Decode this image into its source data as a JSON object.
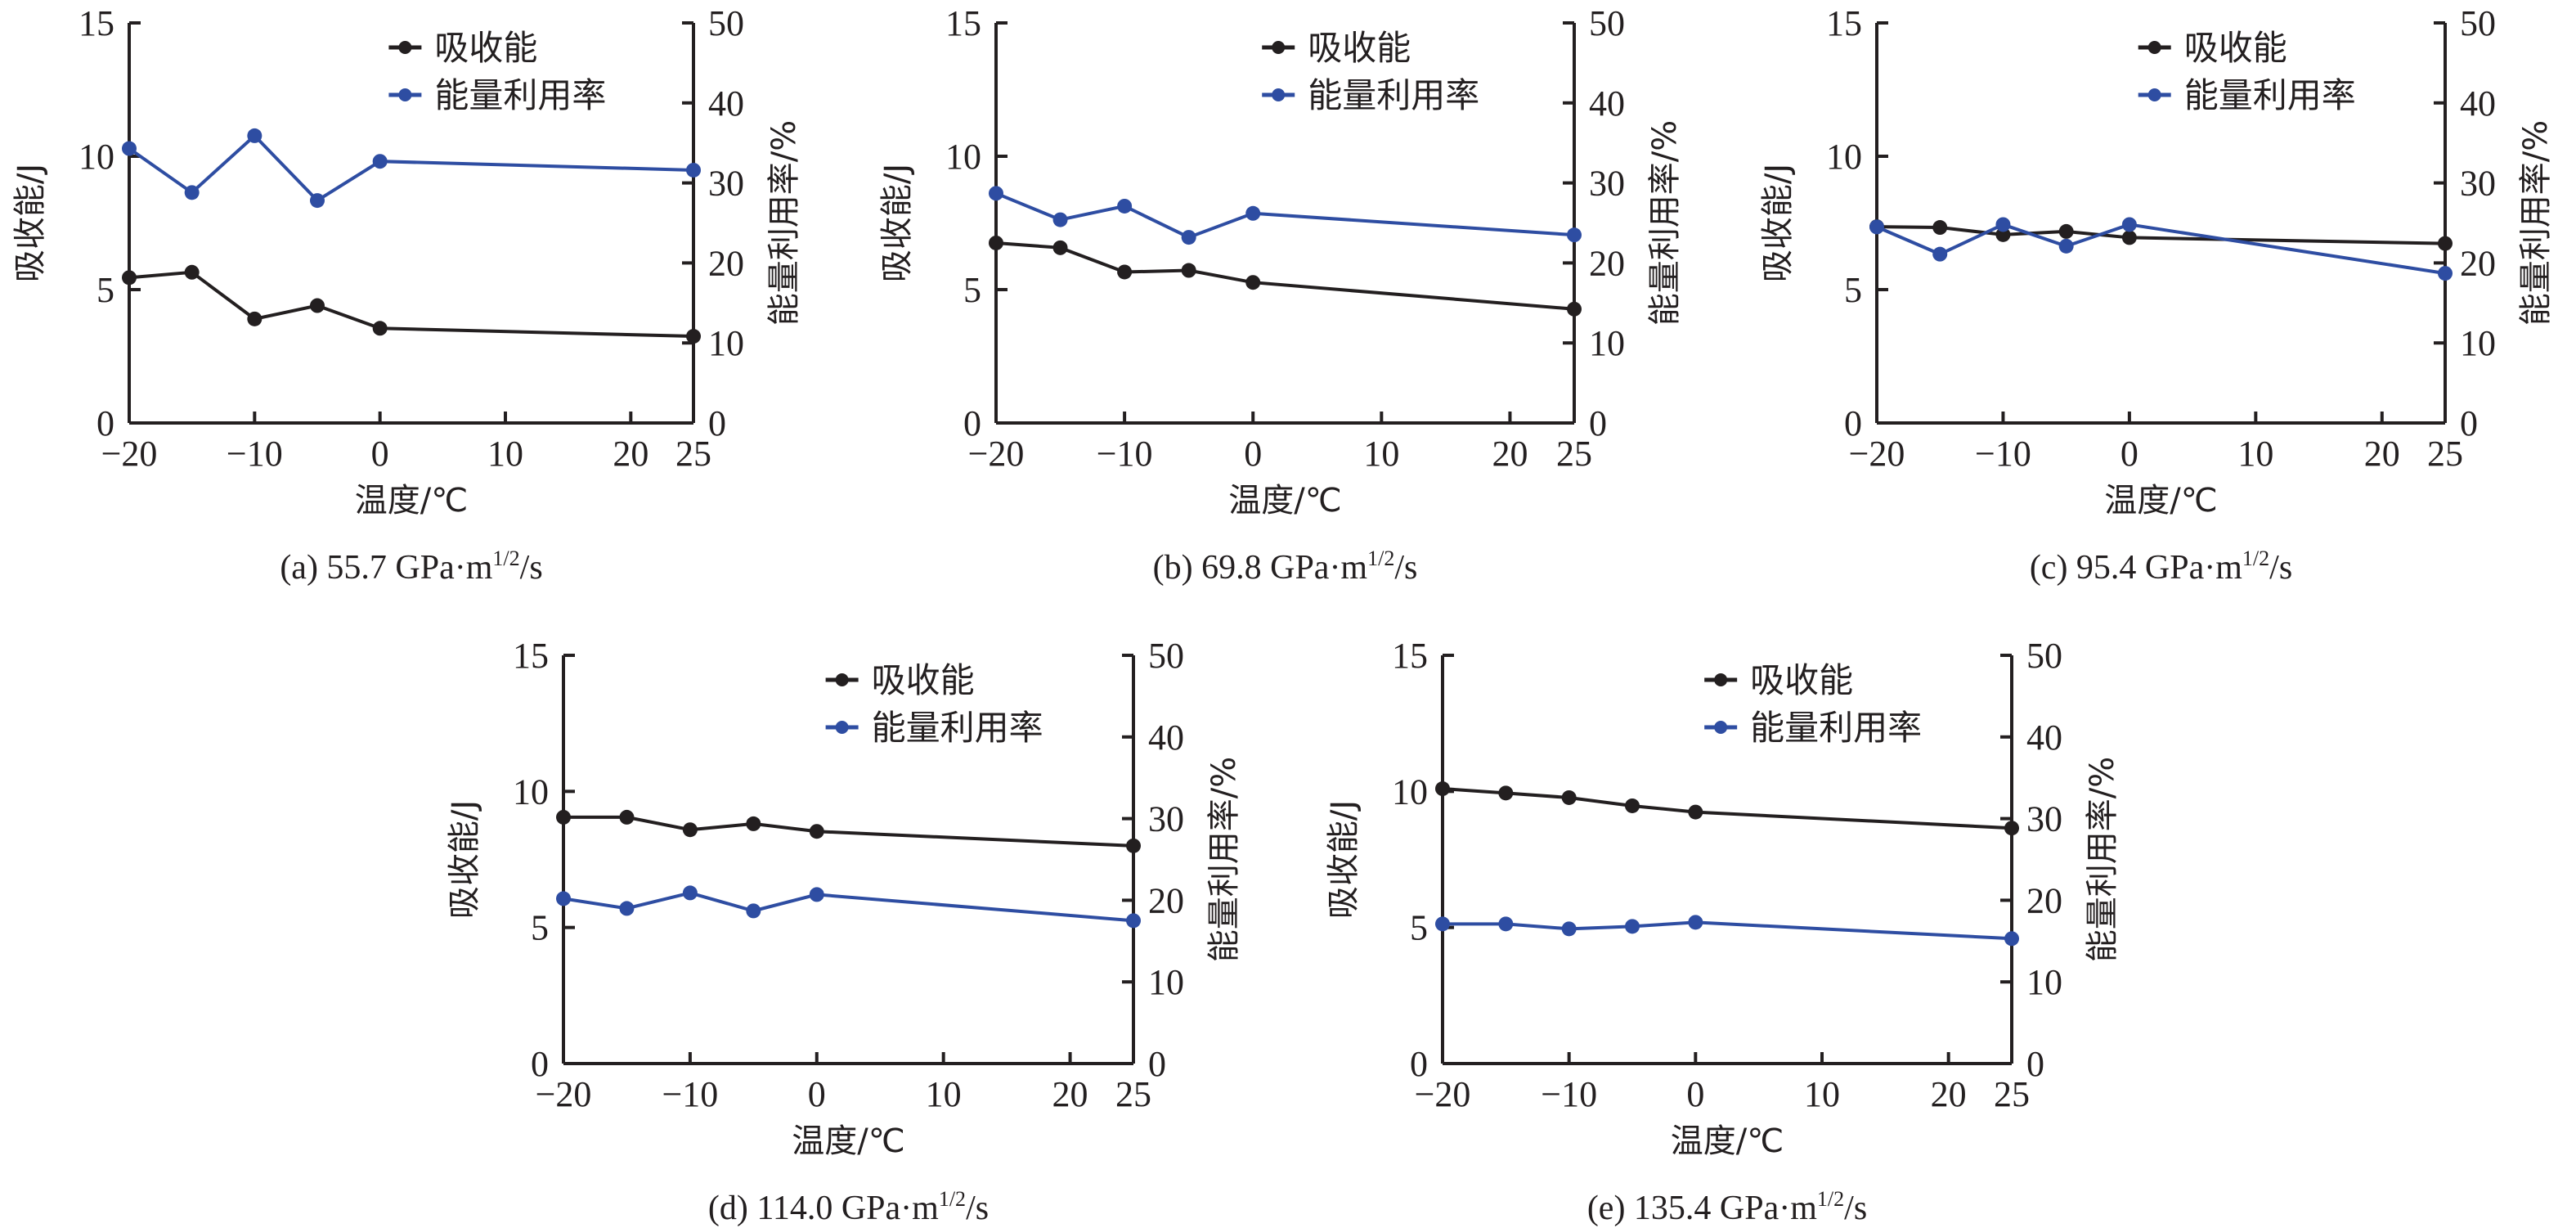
{
  "chart_data": [
    {
      "type": "line",
      "panel": "a",
      "caption": {
        "prefix": "(a) 55.7 GPa·m",
        "sup": "1/2",
        "suffix": "/s"
      },
      "xlabel": "温度/℃",
      "ylabel": "吸收能/J",
      "y2label": "能量利用率/%",
      "xlim": [
        -20,
        25
      ],
      "ylim": [
        0,
        15
      ],
      "y2lim": [
        0,
        50
      ],
      "xticks": [
        -20,
        -10,
        0,
        10,
        20,
        25
      ],
      "yticks": [
        0,
        5,
        10,
        15
      ],
      "y2ticks": [
        0,
        10,
        20,
        30,
        40,
        50
      ],
      "legend": "top-right",
      "x": [
        -20,
        -15,
        -10,
        -5,
        0,
        25
      ],
      "series": [
        {
          "name": "吸收能",
          "axis": "left",
          "color": "#231f20",
          "values": [
            5.45,
            5.65,
            3.9,
            4.4,
            3.55,
            3.25
          ]
        },
        {
          "name": "能量利用率",
          "axis": "right",
          "color": "#2e4da2",
          "values": [
            34.3,
            28.8,
            35.9,
            27.8,
            32.7,
            31.6
          ]
        }
      ]
    },
    {
      "type": "line",
      "panel": "b",
      "caption": {
        "prefix": "(b) 69.8 GPa·m",
        "sup": "1/2",
        "suffix": "/s"
      },
      "xlabel": "温度/℃",
      "ylabel": "吸收能/J",
      "y2label": "能量利用率/%",
      "xlim": [
        -20,
        25
      ],
      "ylim": [
        0,
        15
      ],
      "y2lim": [
        0,
        50
      ],
      "xticks": [
        -20,
        -10,
        0,
        10,
        20,
        25
      ],
      "yticks": [
        0,
        5,
        10,
        15
      ],
      "y2ticks": [
        0,
        10,
        20,
        30,
        40,
        50
      ],
      "legend": "top-right",
      "x": [
        -20,
        -15,
        -10,
        -5,
        0,
        25
      ],
      "series": [
        {
          "name": "吸收能",
          "axis": "left",
          "color": "#231f20",
          "values": [
            6.75,
            6.57,
            5.66,
            5.72,
            5.27,
            4.27
          ]
        },
        {
          "name": "能量利用率",
          "axis": "right",
          "color": "#2e4da2",
          "values": [
            28.7,
            25.4,
            27.1,
            23.2,
            26.2,
            23.5
          ]
        }
      ]
    },
    {
      "type": "line",
      "panel": "c",
      "caption": {
        "prefix": "(c) 95.4 GPa·m",
        "sup": "1/2",
        "suffix": "/s"
      },
      "xlabel": "温度/℃",
      "ylabel": "吸收能/J",
      "y2label": "能量利用率/%",
      "xlim": [
        -20,
        25
      ],
      "ylim": [
        0,
        15
      ],
      "y2lim": [
        0,
        50
      ],
      "xticks": [
        -20,
        -10,
        0,
        10,
        20,
        25
      ],
      "yticks": [
        0,
        5,
        10,
        15
      ],
      "y2ticks": [
        0,
        10,
        20,
        30,
        40,
        50
      ],
      "legend": "top-right",
      "x": [
        -20,
        -15,
        -10,
        -5,
        0,
        25
      ],
      "series": [
        {
          "name": "吸收能",
          "axis": "left",
          "color": "#231f20",
          "values": [
            7.36,
            7.33,
            7.06,
            7.18,
            6.95,
            6.73
          ]
        },
        {
          "name": "能量利用率",
          "axis": "right",
          "color": "#2e4da2",
          "values": [
            24.5,
            21.1,
            24.8,
            22.1,
            24.8,
            18.7
          ]
        }
      ]
    },
    {
      "type": "line",
      "panel": "d",
      "caption": {
        "prefix": "(d) 114.0 GPa·m",
        "sup": "1/2",
        "suffix": "/s"
      },
      "xlabel": "温度/℃",
      "ylabel": "吸收能/J",
      "y2label": "能量利用率/%",
      "xlim": [
        -20,
        25
      ],
      "ylim": [
        0,
        15
      ],
      "y2lim": [
        0,
        50
      ],
      "xticks": [
        -20,
        -10,
        0,
        10,
        20,
        25
      ],
      "yticks": [
        0,
        5,
        10,
        15
      ],
      "y2ticks": [
        0,
        10,
        20,
        30,
        40,
        50
      ],
      "legend": "top-right",
      "x": [
        -20,
        -15,
        -10,
        -5,
        0,
        25
      ],
      "series": [
        {
          "name": "吸收能",
          "axis": "left",
          "color": "#231f20",
          "values": [
            9.05,
            9.05,
            8.59,
            8.81,
            8.53,
            8.0
          ]
        },
        {
          "name": "能量利用率",
          "axis": "right",
          "color": "#2e4da2",
          "values": [
            20.2,
            19.0,
            20.9,
            18.7,
            20.7,
            17.5
          ]
        }
      ]
    },
    {
      "type": "line",
      "panel": "e",
      "caption": {
        "prefix": "(e) 135.4 GPa·m",
        "sup": "1/2",
        "suffix": "/s"
      },
      "xlabel": "温度/℃",
      "ylabel": "吸收能/J",
      "y2label": "能量利用率/%",
      "xlim": [
        -20,
        25
      ],
      "ylim": [
        0,
        15
      ],
      "y2lim": [
        0,
        50
      ],
      "xticks": [
        -20,
        -10,
        0,
        10,
        20,
        25
      ],
      "yticks": [
        0,
        5,
        10,
        15
      ],
      "y2ticks": [
        0,
        10,
        20,
        30,
        40,
        50
      ],
      "legend": "top-right",
      "x": [
        -20,
        -15,
        -10,
        -5,
        0,
        25
      ],
      "series": [
        {
          "name": "吸收能",
          "axis": "left",
          "color": "#231f20",
          "values": [
            10.1,
            9.94,
            9.77,
            9.47,
            9.24,
            8.65
          ]
        },
        {
          "name": "能量利用率",
          "axis": "right",
          "color": "#2e4da2",
          "values": [
            17.1,
            17.1,
            16.5,
            16.8,
            17.3,
            15.3
          ]
        }
      ]
    }
  ]
}
